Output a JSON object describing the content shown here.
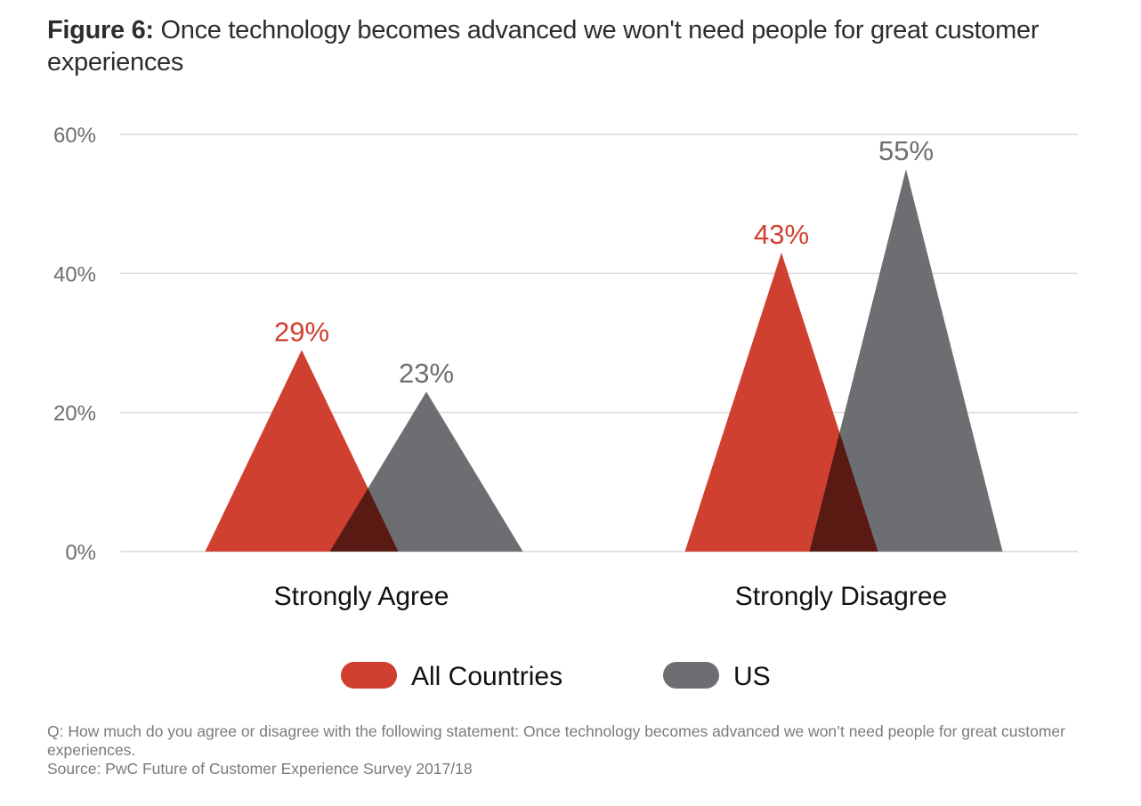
{
  "title": {
    "figure_label": "Figure 6:",
    "text": " Once technology becomes advanced we won't need people for great customer experiences"
  },
  "chart_data": {
    "type": "bar",
    "mark_shape": "triangle",
    "title": "Figure 6: Once technology becomes advanced we won't need people for great customer experiences",
    "xlabel": "",
    "ylabel": "",
    "categories": [
      "Strongly Agree",
      "Strongly Disagree"
    ],
    "series": [
      {
        "name": "All Countries",
        "color": "#d04030",
        "values": [
          29,
          43
        ],
        "labels": [
          "29%",
          "43%"
        ],
        "label_color": "#d04030"
      },
      {
        "name": "US",
        "color": "#6d6e72",
        "values": [
          23,
          55
        ],
        "labels": [
          "23%",
          "55%"
        ],
        "label_color": "#6d6e72"
      }
    ],
    "overlap_color": "#5a1a14",
    "ylim": [
      0,
      60
    ],
    "yticks": [
      0,
      20,
      40,
      60
    ],
    "ytick_labels": [
      "0%",
      "20%",
      "40%",
      "60%"
    ],
    "grid": true,
    "legend_position": "bottom-center"
  },
  "legend": [
    {
      "label": "All Countries",
      "color": "#d04030"
    },
    {
      "label": "US",
      "color": "#6d6e72"
    }
  ],
  "notes": {
    "question": "Q: How much do you agree or disagree with the following statement: Once technology becomes advanced we won’t need people for great customer experiences.",
    "source": "Source: PwC Future of Customer Experience Survey 2017/18"
  }
}
